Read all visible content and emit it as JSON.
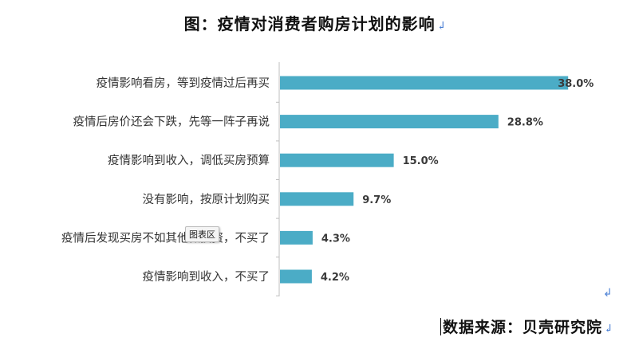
{
  "document": {
    "title": "图：疫情对消费者购房计划的影响",
    "paragraph_mark": "↲",
    "source_text": "数据来源：贝壳研究院",
    "tooltip_text": "图表区"
  },
  "chart_data": {
    "type": "bar",
    "orientation": "horizontal",
    "categories": [
      "疫情影响看房，等到疫情过后再买",
      "疫情后房价还会下跌，先等一阵子再说",
      "疫情影响到收入，调低买房预算",
      "没有影响，按原计划购买",
      "疫情后发现买房不如其他做投资，不买了",
      "疫情影响到收入，不买了"
    ],
    "values": [
      38.0,
      28.8,
      15.0,
      9.7,
      4.3,
      4.2
    ],
    "value_labels": [
      "38.0%",
      "28.8%",
      "15.0%",
      "9.7%",
      "4.3%",
      "4.2%"
    ],
    "title": "",
    "xlabel": "",
    "ylabel": "",
    "xlim": [
      0,
      38.5
    ],
    "grid": false,
    "legend": "none",
    "bar_color": "#4bacc6"
  }
}
